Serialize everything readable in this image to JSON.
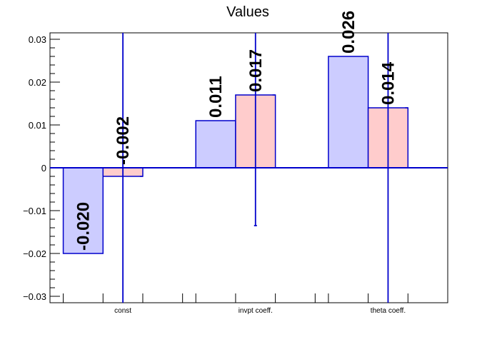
{
  "chart_data": {
    "type": "bar",
    "title": "Values",
    "xlabel": "",
    "ylabel": "",
    "categories": [
      "const",
      "invpt coeff.",
      "theta coeff."
    ],
    "ylim": [
      -0.0315,
      0.0315
    ],
    "yticks": [
      -0.03,
      -0.02,
      -0.01,
      0,
      0.01,
      0.02,
      0.03
    ],
    "ytick_labels": [
      "−0.03",
      "−0.02",
      "−0.01",
      "0",
      "0.01",
      "0.02",
      "0.03"
    ],
    "grid": false,
    "series": [
      {
        "values": [
          -0.02,
          0.011,
          0.026
        ],
        "labels": [
          "-0.020",
          "0.011",
          "0.026"
        ],
        "fill": "#ccccff",
        "stroke": "#0000cc"
      },
      {
        "values": [
          -0.002,
          0.017,
          0.014
        ],
        "labels": [
          "-0.002",
          "0.017",
          "0.014"
        ],
        "fill": "#ffcccc",
        "stroke": "#0000cc",
        "error_low": [
          -0.0315,
          -0.0135,
          -0.0315
        ],
        "error_high": [
          0.0315,
          0.0315,
          0.0315
        ]
      }
    ],
    "colors": {
      "axis": "#000000",
      "zero_line": "#0000cc",
      "error_bar": "#0000cc"
    }
  }
}
